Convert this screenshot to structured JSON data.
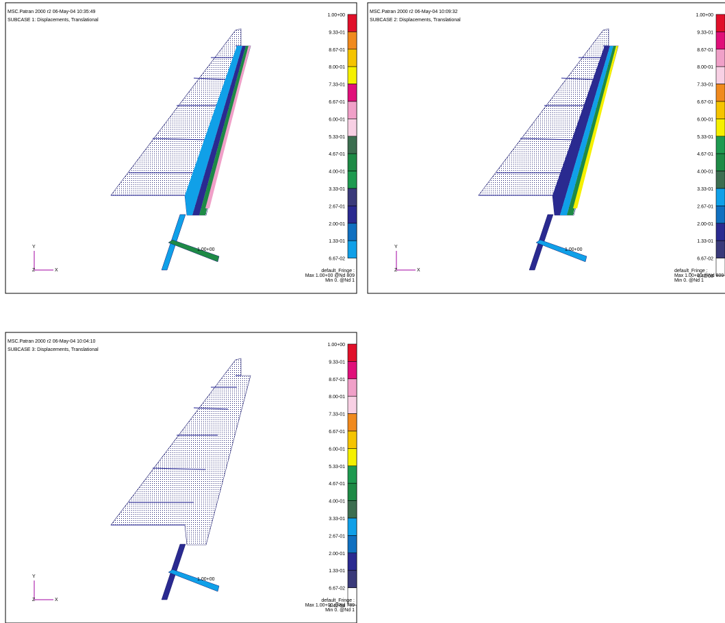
{
  "panels": [
    {
      "header": [
        "MSC.Patran 2000 r2 06-May-04 10:35:49",
        "SUBCASE 1: Displacements, Translational"
      ],
      "legend_labels": [
        "1.00+00",
        "9.33-01",
        "8.67-01",
        "8.00-01",
        "7.33-01",
        "6.67-01",
        "6.00-01",
        "5.33-01",
        "4.67-01",
        "4.00-01",
        "3.33-01",
        "2.67-01",
        "2.00-01",
        "1.33-01",
        "6.67-02"
      ],
      "legend_colors": [
        "#e0102a",
        "#f08a1e",
        "#f5c400",
        "#f5f000",
        "#e0107a",
        "#f0a0c8",
        "#f8d0e4",
        "#3c6e50",
        "#1e8a46",
        "#1e9a50",
        "#3a3a7a",
        "#2a2a90",
        "#1070c0",
        "#10a0e8"
      ],
      "footer": [
        "default_Fringe :",
        "Max 1.00+00 @Nd 809",
        "Min  0.  @Nd 1"
      ],
      "marker_label": "1.00+00",
      "axes": [
        "Y",
        "Z",
        "X"
      ]
    },
    {
      "header": [
        "MSC.Patran 2000 r2 06-May-04 10:09:32",
        "SUBCASE 2: Displacements, Translational"
      ],
      "legend_labels": [
        "1.00+00",
        "9.33-01",
        "8.67-01",
        "8.00-01",
        "7.33-01",
        "6.67-01",
        "6.00-01",
        "5.33-01",
        "4.67-01",
        "4.00-01",
        "3.33-01",
        "2.67-01",
        "2.00-01",
        "1.33-01",
        "6.67-02",
        "4.47-08"
      ],
      "legend_colors": [
        "#e0102a",
        "#e0107a",
        "#f0a0c8",
        "#f8d0e4",
        "#f08a1e",
        "#f5c400",
        "#f5f000",
        "#1e9a50",
        "#1e8a46",
        "#3c6e50",
        "#10a0e8",
        "#1070c0",
        "#2a2a90",
        "#3a3a7a",
        "#ffffff"
      ],
      "footer": [
        "default_Fringe :",
        "Max 1.00+00 @Nd 809",
        "Min  0.  @Nd 1"
      ],
      "marker_label": "1.00+00",
      "axes": [
        "Y",
        "Z",
        "X"
      ]
    },
    {
      "header": [
        "MSC.Patran 2000 r2 06-May-04 10:04:10",
        "SUBCASE 3: Displacements, Translational"
      ],
      "legend_labels": [
        "1.00+00",
        "9.33-01",
        "8.67-01",
        "8.00-01",
        "7.33-01",
        "6.67-01",
        "6.00-01",
        "5.33-01",
        "4.67-01",
        "4.00-01",
        "3.33-01",
        "2.67-01",
        "2.00-01",
        "1.33-01",
        "6.67-02",
        "4.47-08"
      ],
      "legend_colors": [
        "#e0102a",
        "#e0107a",
        "#f0a0c8",
        "#f8d0e4",
        "#f08a1e",
        "#f5c400",
        "#f5f000",
        "#1e9a50",
        "#1e8a46",
        "#3c6e50",
        "#10a0e8",
        "#1070c0",
        "#2a2a90",
        "#3a3a7a",
        "#ffffff"
      ],
      "footer": [
        "default_Fringe :",
        "Max 1.00+00 @Nd 789",
        "Min  0.  @Nd 1"
      ],
      "marker_label": "1.00+00",
      "axes": [
        "Y",
        "Z",
        "X"
      ]
    }
  ]
}
